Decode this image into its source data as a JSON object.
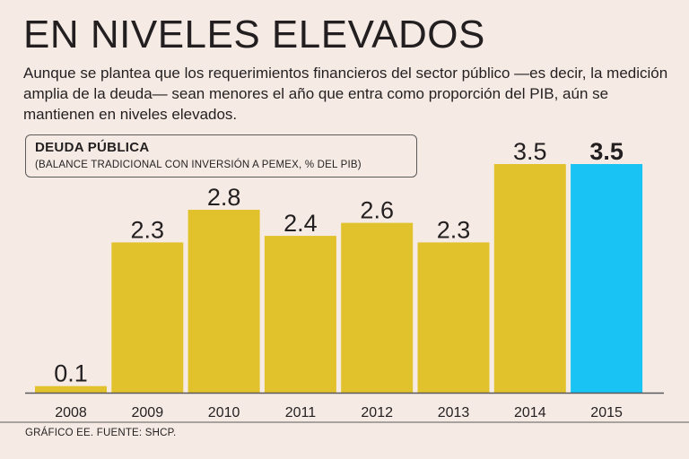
{
  "header": {
    "title": "EN NIVELES ELEVADOS",
    "subtitle": "Aunque se plantea que los requerimientos financieros del sector público —es decir, la medición amplia de la deuda— sean menores el año que entra como proporción del PIB, aún se mantienen en niveles elevados."
  },
  "legend": {
    "title": "DEUDA PÚBLICA",
    "subtitle": "(BALANCE TRADICIONAL CON INVERSIÓN A PEMEX, % DEL PIB)"
  },
  "footer": {
    "source": "GRÁFICO EE. FUENTE: SHCP."
  },
  "colors": {
    "bar": "#e2c22c",
    "highlight": "#19c3f3",
    "axis": "#5a5a5a",
    "text": "#231f20"
  },
  "chart_data": {
    "type": "bar",
    "categories": [
      "2008",
      "2009",
      "2010",
      "2011",
      "2012",
      "2013",
      "2014",
      "2015"
    ],
    "values": [
      0.1,
      2.3,
      2.8,
      2.4,
      2.6,
      2.3,
      3.5,
      3.5
    ],
    "value_labels": [
      "0.1",
      "2.3",
      "2.8",
      "2.4",
      "2.6",
      "2.3",
      "3.5",
      "3.5"
    ],
    "highlighted_category": "2015",
    "ylim": [
      0,
      3.5
    ],
    "grid": false
  }
}
